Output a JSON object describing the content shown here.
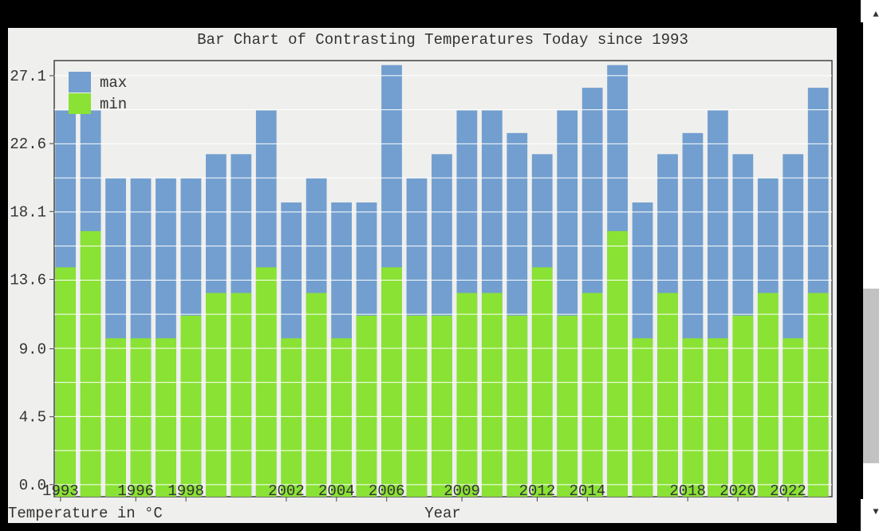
{
  "chart_data": {
    "type": "bar",
    "title": "Bar Chart of Contrasting Temperatures Today since 1993",
    "xlabel": "Year",
    "ylabel": "Temperature in °C",
    "yticks": [
      "0.0",
      "4.5",
      "9.0",
      "13.6",
      "18.1",
      "22.6",
      "27.1"
    ],
    "xticks": [
      "1993",
      "1996",
      "1998",
      "2002",
      "2004",
      "2006",
      "2009",
      "2012",
      "2014",
      "2018",
      "2020",
      "2022"
    ],
    "ylim": [
      -0.8,
      28.1
    ],
    "legend_position": "top-left",
    "grid": "horizontal",
    "x": [
      1993.0,
      1993.4,
      1994.0,
      1994.4,
      1995.0,
      1995.4,
      1996.0,
      1996.4,
      1997.0,
      1997.4,
      1998.0,
      1998.4,
      1999.0,
      1999.4,
      2000.0,
      2000.4,
      2001.0,
      2001.4,
      2002.0,
      2002.4,
      2003.0,
      2003.4,
      2004.0,
      2004.4,
      2005.0,
      2005.4,
      2006.0,
      2006.4,
      2007.0,
      2007.4,
      2008.0,
      2008.4,
      2009.0,
      2009.4,
      2010.0,
      2010.4,
      2011.0,
      2011.4,
      2012.0,
      2012.4,
      2013.0,
      2013.4,
      2014.0,
      2014.4,
      2015.0,
      2015.4,
      2016.0,
      2016.4,
      2017.0,
      2017.4,
      2018.0,
      2018.4,
      2019.0,
      2019.4,
      2020.0,
      2020.4,
      2021.0,
      2021.4,
      2022.0,
      2022.4,
      2023.0,
      2023.4
    ],
    "series": [
      {
        "name": "max",
        "color": "#729fcf",
        "values": [
          24.8,
          24.8,
          24.8,
          24.8,
          20.3,
          20.3,
          20.3,
          20.3,
          20.3,
          20.3,
          20.3,
          20.3,
          21.9,
          21.9,
          21.9,
          21.9,
          24.8,
          24.8,
          18.7,
          18.7,
          20.3,
          20.3,
          18.7,
          18.7,
          18.7,
          18.7,
          27.8,
          27.8,
          20.3,
          20.3,
          21.9,
          21.9,
          24.8,
          24.8,
          24.8,
          24.8,
          23.3,
          23.3,
          21.9,
          21.9,
          24.8,
          24.8,
          26.3,
          26.3,
          27.8,
          27.8,
          18.7,
          18.7,
          21.9,
          21.9,
          23.3,
          23.3,
          24.8,
          24.8,
          21.9,
          21.9,
          20.3,
          20.3,
          21.9,
          21.9,
          26.3,
          26.3
        ]
      },
      {
        "name": "min",
        "color": "#8ae234",
        "values": [
          14.4,
          14.4,
          16.8,
          16.8,
          9.7,
          9.7,
          9.7,
          9.7,
          9.7,
          9.7,
          11.2,
          11.2,
          12.7,
          12.7,
          12.7,
          12.7,
          14.4,
          14.4,
          9.7,
          9.7,
          12.7,
          12.7,
          9.7,
          9.7,
          11.2,
          11.2,
          14.4,
          14.4,
          11.2,
          11.2,
          11.2,
          11.2,
          12.7,
          12.7,
          12.7,
          12.7,
          11.2,
          11.2,
          14.4,
          14.4,
          11.2,
          11.2,
          12.7,
          12.7,
          16.8,
          16.8,
          9.7,
          9.7,
          12.7,
          12.7,
          9.7,
          9.7,
          9.7,
          9.7,
          11.2,
          11.2,
          12.7,
          12.7,
          9.7,
          9.7,
          12.7,
          12.7
        ]
      }
    ]
  }
}
